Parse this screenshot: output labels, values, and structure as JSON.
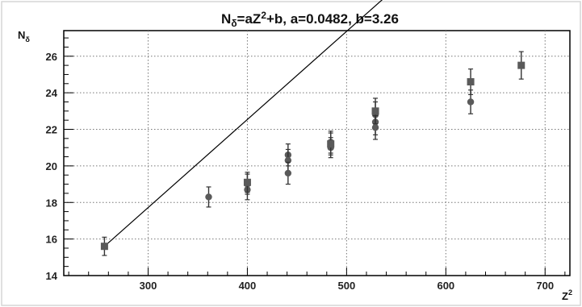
{
  "chart_data": {
    "type": "scatter",
    "title": "N_δ=aZ²+b, a=0.0482, b=3.26",
    "xlabel": "Z²",
    "ylabel": "N_δ",
    "xlim": [
      215,
      725
    ],
    "ylim": [
      14,
      27.4
    ],
    "xticks": [
      300,
      400,
      500,
      600,
      700
    ],
    "yticks": [
      14,
      16,
      18,
      20,
      22,
      24,
      26
    ],
    "grid": true,
    "fit": {
      "a": 0.0482,
      "b": 3.26,
      "x_range": [
        256,
        676
      ]
    },
    "series": [
      {
        "marker": "circle",
        "points": [
          {
            "x": 361,
            "y": 18.3,
            "err": 0.55
          },
          {
            "x": 400,
            "y": 19.0,
            "err": 0.55
          },
          {
            "x": 400,
            "y": 18.7,
            "err": 0.55
          },
          {
            "x": 441,
            "y": 20.6,
            "err": 0.6
          },
          {
            "x": 441,
            "y": 20.3,
            "err": 0.6
          },
          {
            "x": 441,
            "y": 19.6,
            "err": 0.6
          },
          {
            "x": 484,
            "y": 21.3,
            "err": 0.6
          },
          {
            "x": 484,
            "y": 21.0,
            "err": 0.55
          },
          {
            "x": 529,
            "y": 22.8,
            "err": 0.7
          },
          {
            "x": 529,
            "y": 22.4,
            "err": 0.7
          },
          {
            "x": 529,
            "y": 22.1,
            "err": 0.65
          },
          {
            "x": 625,
            "y": 23.5,
            "err": 0.65
          }
        ]
      },
      {
        "marker": "square",
        "points": [
          {
            "x": 256,
            "y": 15.6,
            "err": 0.5
          },
          {
            "x": 400,
            "y": 19.1,
            "err": 0.55
          },
          {
            "x": 484,
            "y": 21.2,
            "err": 0.6
          },
          {
            "x": 529,
            "y": 23.0,
            "err": 0.7
          },
          {
            "x": 625,
            "y": 24.6,
            "err": 0.7
          },
          {
            "x": 676,
            "y": 25.5,
            "err": 0.75
          }
        ]
      }
    ]
  }
}
